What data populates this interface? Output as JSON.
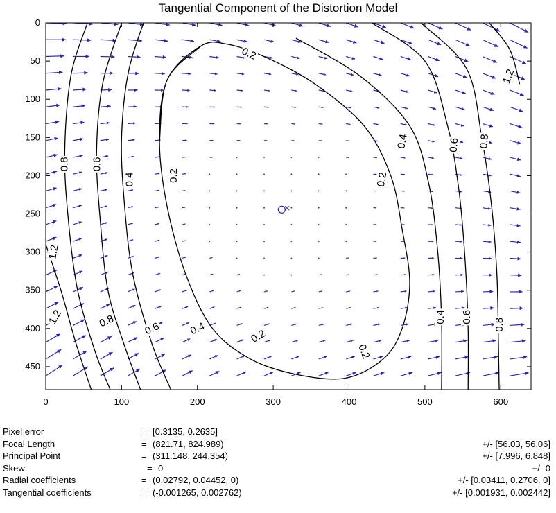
{
  "chart_data": {
    "type": "quiver-contour",
    "title": "Tangential Component of the Distortion Model",
    "xlabel": "",
    "ylabel": "",
    "xlim": [
      0,
      640
    ],
    "ylim": [
      0,
      480
    ],
    "y_axis_direction": "reversed",
    "x_ticks": [
      "0",
      "100",
      "200",
      "300",
      "400",
      "500",
      "600"
    ],
    "y_ticks": [
      "0",
      "50",
      "100",
      "150",
      "200",
      "250",
      "300",
      "350",
      "400",
      "450"
    ],
    "principal_point": {
      "x": 311.148,
      "y": 244.354
    },
    "arrow_color": "#2a2aa8",
    "contour_color": "#000000",
    "contours": [
      {
        "level": 0.2,
        "label": "0.2",
        "points": [
          [
            205,
            30
          ],
          [
            160,
            75
          ],
          [
            150,
            155
          ],
          [
            160,
            240
          ],
          [
            185,
            330
          ],
          [
            220,
            400
          ],
          [
            270,
            440
          ],
          [
            330,
            460
          ],
          [
            395,
            465
          ],
          [
            445,
            440
          ],
          [
            470,
            400
          ],
          [
            480,
            340
          ],
          [
            470,
            270
          ],
          [
            455,
            200
          ],
          [
            420,
            135
          ],
          [
            355,
            80
          ],
          [
            290,
            45
          ],
          [
            240,
            28
          ]
        ]
      },
      {
        "level": 0.4,
        "label": "0.4",
        "points": [
          [
            140,
            -30
          ],
          [
            110,
            60
          ],
          [
            100,
            150
          ],
          [
            104,
            240
          ],
          [
            115,
            330
          ],
          [
            140,
            420
          ],
          [
            165,
            480
          ]
        ]
      },
      {
        "level": 0.6,
        "label": "0.6",
        "points": [
          [
            100,
            0
          ],
          [
            75,
            80
          ],
          [
            67,
            170
          ],
          [
            72,
            260
          ],
          [
            82,
            350
          ],
          [
            103,
            420
          ],
          [
            125,
            480
          ]
        ]
      },
      {
        "level": 0.8,
        "label": "0.8",
        "points": [
          [
            55,
            0
          ],
          [
            33,
            70
          ],
          [
            25,
            170
          ],
          [
            30,
            260
          ],
          [
            42,
            350
          ],
          [
            65,
            430
          ],
          [
            85,
            480
          ]
        ]
      },
      {
        "level": 1.2,
        "label": "1.2",
        "points": [
          [
            0,
            290
          ],
          [
            20,
            350
          ],
          [
            40,
            420
          ],
          [
            60,
            480
          ]
        ]
      },
      {
        "level": 0.4,
        "label": "0.4",
        "points": [
          [
            330,
            20
          ],
          [
            415,
            70
          ],
          [
            480,
            135
          ],
          [
            505,
            210
          ],
          [
            517,
            300
          ],
          [
            522,
            390
          ],
          [
            522,
            480
          ]
        ]
      },
      {
        "level": 0.6,
        "label": "0.6",
        "points": [
          [
            430,
            0
          ],
          [
            500,
            50
          ],
          [
            530,
            135
          ],
          [
            545,
            220
          ],
          [
            553,
            310
          ],
          [
            557,
            400
          ],
          [
            557,
            480
          ]
        ]
      },
      {
        "level": 0.8,
        "label": "0.8",
        "points": [
          [
            495,
            0
          ],
          [
            555,
            60
          ],
          [
            575,
            150
          ],
          [
            588,
            240
          ],
          [
            595,
            330
          ],
          [
            597,
            420
          ],
          [
            598,
            480
          ]
        ]
      },
      {
        "level": 1.2,
        "label": "1.2",
        "points": [
          [
            585,
            0
          ],
          [
            612,
            35
          ],
          [
            625,
            80
          ]
        ]
      }
    ],
    "contour_labels": [
      {
        "text": "0.2",
        "x": 268,
        "y": 40,
        "angle": 25
      },
      {
        "text": "0.2",
        "x": 168,
        "y": 200,
        "angle": -90
      },
      {
        "text": "0.2",
        "x": 443,
        "y": 205,
        "angle": -80
      },
      {
        "text": "0.2",
        "x": 280,
        "y": 410,
        "angle": -30
      },
      {
        "text": "0.2",
        "x": 420,
        "y": 430,
        "angle": 70
      },
      {
        "text": "0.4",
        "x": 110,
        "y": 205,
        "angle": -90
      },
      {
        "text": "0.4",
        "x": 200,
        "y": 400,
        "angle": -25
      },
      {
        "text": "0.4",
        "x": 470,
        "y": 155,
        "angle": -80
      },
      {
        "text": "0.4",
        "x": 520,
        "y": 385,
        "angle": -90
      },
      {
        "text": "0.6",
        "x": 67,
        "y": 185,
        "angle": -90
      },
      {
        "text": "0.6",
        "x": 140,
        "y": 400,
        "angle": -25
      },
      {
        "text": "0.6",
        "x": 538,
        "y": 160,
        "angle": -85
      },
      {
        "text": "0.6",
        "x": 555,
        "y": 385,
        "angle": -90
      },
      {
        "text": "0.8",
        "x": 24,
        "y": 185,
        "angle": -90
      },
      {
        "text": "0.8",
        "x": 80,
        "y": 390,
        "angle": -25
      },
      {
        "text": "0.8",
        "x": 578,
        "y": 155,
        "angle": -85
      },
      {
        "text": "0.8",
        "x": 598,
        "y": 395,
        "angle": -90
      },
      {
        "text": "1.2",
        "x": 10,
        "y": 300,
        "angle": -80
      },
      {
        "text": "1.2",
        "x": 12,
        "y": 385,
        "angle": -60
      },
      {
        "text": "1.2",
        "x": 610,
        "y": 70,
        "angle": -70
      }
    ]
  },
  "params": [
    {
      "label": "Pixel error",
      "value": "[0.3135, 0.2635]",
      "error": ""
    },
    {
      "label": "Focal Length",
      "value": "(821.71, 824.989)",
      "error": "+/- [56.03, 56.06]"
    },
    {
      "label": "Principal Point",
      "value": "(311.148, 244.354)",
      "error": "+/- [7.996, 6.848]"
    },
    {
      "label": "Skew",
      "value": "0",
      "error": "+/- 0"
    },
    {
      "label": "Radial coefficients",
      "value": "(0.02792, 0.04452, 0)",
      "error": "+/- [0.03411, 0.2706, 0]"
    },
    {
      "label": "Tangential coefficients",
      "value": "(-0.001265, 0.002762)",
      "error": "+/- [0.001931, 0.002442]"
    }
  ],
  "eq_sign": "="
}
